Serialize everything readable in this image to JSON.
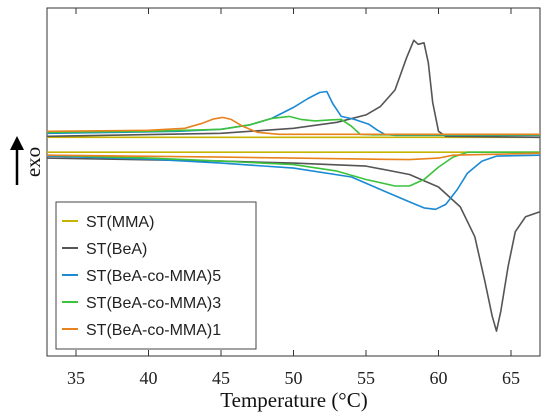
{
  "chart_data": {
    "type": "line",
    "xlabel": "Temperature (°C)",
    "ylabel": "exo",
    "xlim": [
      33,
      67
    ],
    "ylim": [
      -4.4,
      2.6
    ],
    "xticks": [
      35,
      40,
      45,
      50,
      55,
      60,
      65
    ],
    "xtick_labels": [
      "35",
      "40",
      "45",
      "50",
      "55",
      "60",
      "65"
    ],
    "y_ticks_shown": false,
    "legend_position": "bottom-left",
    "series": [
      {
        "name": "ST(MMA)",
        "color": "#c8b400",
        "segments": [
          {
            "x": [
              33,
              67
            ],
            "y": [
              0.0,
              0.0
            ]
          },
          {
            "x": [
              33,
              67
            ],
            "y": [
              -0.3,
              -0.3
            ]
          }
        ]
      },
      {
        "name": "ST(BeA)",
        "color": "#555555",
        "segments": [
          {
            "x": [
              33,
              45,
              50,
              53,
              55,
              56,
              57,
              57.8,
              58.3,
              58.6,
              59.0,
              59.3,
              59.6,
              60.0,
              60.5,
              67
            ],
            "y": [
              0.02,
              0.08,
              0.18,
              0.3,
              0.45,
              0.62,
              0.95,
              1.6,
              1.95,
              1.87,
              1.9,
              1.5,
              0.7,
              0.12,
              0.02,
              0.0
            ]
          },
          {
            "x": [
              33,
              45,
              50,
              55,
              58,
              60,
              61.5,
              62.5,
              63.2,
              63.7,
              64.0,
              64.3,
              64.8,
              65.3,
              66,
              67
            ],
            "y": [
              -0.42,
              -0.48,
              -0.52,
              -0.58,
              -0.75,
              -1.0,
              -1.4,
              -2.0,
              -2.9,
              -3.6,
              -3.9,
              -3.5,
              -2.6,
              -1.9,
              -1.6,
              -1.5
            ]
          }
        ]
      },
      {
        "name": "ST(BeA-co-MMA)5",
        "color": "#1a8ad4",
        "segments": [
          {
            "x": [
              33,
              38,
              42,
              45,
              47,
              48.5,
              50,
              51,
              51.8,
              52.3,
              52.7,
              53.3,
              54.2,
              55.2,
              55.8,
              56.3,
              57,
              67
            ],
            "y": [
              0.08,
              0.1,
              0.12,
              0.16,
              0.25,
              0.38,
              0.6,
              0.78,
              0.9,
              0.92,
              0.68,
              0.42,
              0.36,
              0.26,
              0.14,
              0.06,
              0.04,
              0.04
            ]
          },
          {
            "x": [
              33,
              40,
              45,
              50,
              54,
              56,
              58,
              59,
              59.8,
              60.5,
              61.3,
              62,
              63,
              64,
              67
            ],
            "y": [
              -0.38,
              -0.44,
              -0.52,
              -0.62,
              -0.8,
              -1.05,
              -1.3,
              -1.42,
              -1.45,
              -1.35,
              -1.05,
              -0.72,
              -0.48,
              -0.38,
              -0.36
            ]
          }
        ]
      },
      {
        "name": "ST(BeA-co-MMA)3",
        "color": "#3cc23c",
        "segments": [
          {
            "x": [
              33,
              40,
              45,
              47,
              48.5,
              49.7,
              50.5,
              51.5,
              52.5,
              53.3,
              54.0,
              54.6,
              55.5,
              67
            ],
            "y": [
              0.1,
              0.12,
              0.16,
              0.25,
              0.38,
              0.42,
              0.36,
              0.33,
              0.35,
              0.36,
              0.22,
              0.06,
              0.05,
              0.05
            ]
          },
          {
            "x": [
              33,
              40,
              45,
              50,
              53,
              55,
              57,
              58,
              59,
              60,
              61,
              62,
              67
            ],
            "y": [
              -0.36,
              -0.42,
              -0.48,
              -0.55,
              -0.68,
              -0.85,
              -0.98,
              -0.98,
              -0.85,
              -0.6,
              -0.4,
              -0.3,
              -0.3
            ]
          }
        ]
      },
      {
        "name": "ST(BeA-co-MMA)1",
        "color": "#e8821e",
        "segments": [
          {
            "x": [
              33,
              40,
              42.5,
              43.7,
              44.5,
              45.1,
              45.7,
              46.5,
              47.5,
              49,
              67
            ],
            "y": [
              0.12,
              0.14,
              0.18,
              0.28,
              0.37,
              0.4,
              0.36,
              0.22,
              0.1,
              0.06,
              0.06
            ]
          },
          {
            "x": [
              33,
              45,
              50,
              55,
              58,
              60,
              61,
              67
            ],
            "y": [
              -0.36,
              -0.4,
              -0.42,
              -0.44,
              -0.45,
              -0.42,
              -0.36,
              -0.32
            ]
          }
        ]
      }
    ]
  }
}
